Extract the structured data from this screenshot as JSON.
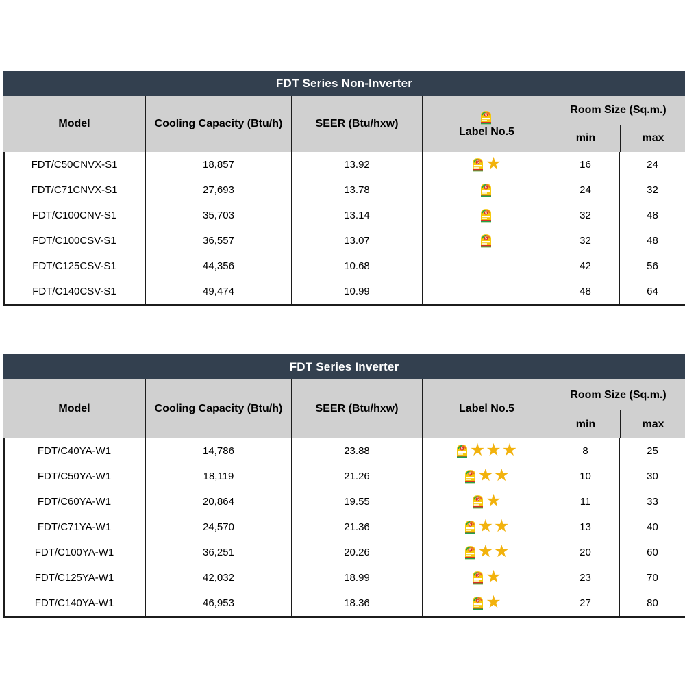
{
  "colors": {
    "title_bar": "#33404f",
    "title_text": "#ffffff",
    "header_bg": "#d0d0d0",
    "grid_line": "#1c1c1c",
    "text": "#000000",
    "star": "#f2b20d",
    "label_yellow": "#f6c80a",
    "label_red": "#d93025",
    "label_green": "#23a24d",
    "label_orange": "#e8652c"
  },
  "tables": [
    {
      "title": "FDT Series Non-Inverter",
      "header_icon": true,
      "columns": {
        "model": "Model",
        "cooling": "Cooling Capacity (Btu/h)",
        "seer": "SEER (Btu/hxw)",
        "label": "Label No.5",
        "room": "Room Size (Sq.m.)",
        "min": "min",
        "max": "max"
      },
      "rows": [
        {
          "model": "FDT/C50CNVX-S1",
          "cooling": "18,857",
          "seer": "13.92",
          "label_icon": true,
          "stars": 1,
          "min": "16",
          "max": "24"
        },
        {
          "model": "FDT/C71CNVX-S1",
          "cooling": "27,693",
          "seer": "13.78",
          "label_icon": true,
          "stars": 0,
          "min": "24",
          "max": "32"
        },
        {
          "model": "FDT/C100CNV-S1",
          "cooling": "35,703",
          "seer": "13.14",
          "label_icon": true,
          "stars": 0,
          "min": "32",
          "max": "48"
        },
        {
          "model": "FDT/C100CSV-S1",
          "cooling": "36,557",
          "seer": "13.07",
          "label_icon": true,
          "stars": 0,
          "min": "32",
          "max": "48"
        },
        {
          "model": "FDT/C125CSV-S1",
          "cooling": "44,356",
          "seer": "10.68",
          "label_icon": false,
          "stars": 0,
          "min": "42",
          "max": "56"
        },
        {
          "model": "FDT/C140CSV-S1",
          "cooling": "49,474",
          "seer": "10.99",
          "label_icon": false,
          "stars": 0,
          "min": "48",
          "max": "64"
        }
      ]
    },
    {
      "title": "FDT Series Inverter",
      "header_icon": false,
      "columns": {
        "model": "Model",
        "cooling": "Cooling Capacity (Btu/h)",
        "seer": "SEER (Btu/hxw)",
        "label": "Label No.5",
        "room": "Room Size (Sq.m.)",
        "min": "min",
        "max": "max"
      },
      "rows": [
        {
          "model": "FDT/C40YA-W1",
          "cooling": "14,786",
          "seer": "23.88",
          "label_icon": true,
          "stars": 3,
          "min": "8",
          "max": "25"
        },
        {
          "model": "FDT/C50YA-W1",
          "cooling": "18,119",
          "seer": "21.26",
          "label_icon": true,
          "stars": 2,
          "min": "10",
          "max": "30"
        },
        {
          "model": "FDT/C60YA-W1",
          "cooling": "20,864",
          "seer": "19.55",
          "label_icon": true,
          "stars": 1,
          "min": "11",
          "max": "33"
        },
        {
          "model": "FDT/C71YA-W1",
          "cooling": "24,570",
          "seer": "21.36",
          "label_icon": true,
          "stars": 2,
          "min": "13",
          "max": "40"
        },
        {
          "model": "FDT/C100YA-W1",
          "cooling": "36,251",
          "seer": "20.26",
          "label_icon": true,
          "stars": 2,
          "min": "20",
          "max": "60"
        },
        {
          "model": "FDT/C125YA-W1",
          "cooling": "42,032",
          "seer": "18.99",
          "label_icon": true,
          "stars": 1,
          "min": "23",
          "max": "70"
        },
        {
          "model": "FDT/C140YA-W1",
          "cooling": "46,953",
          "seer": "18.36",
          "label_icon": true,
          "stars": 1,
          "min": "27",
          "max": "80"
        }
      ]
    }
  ]
}
